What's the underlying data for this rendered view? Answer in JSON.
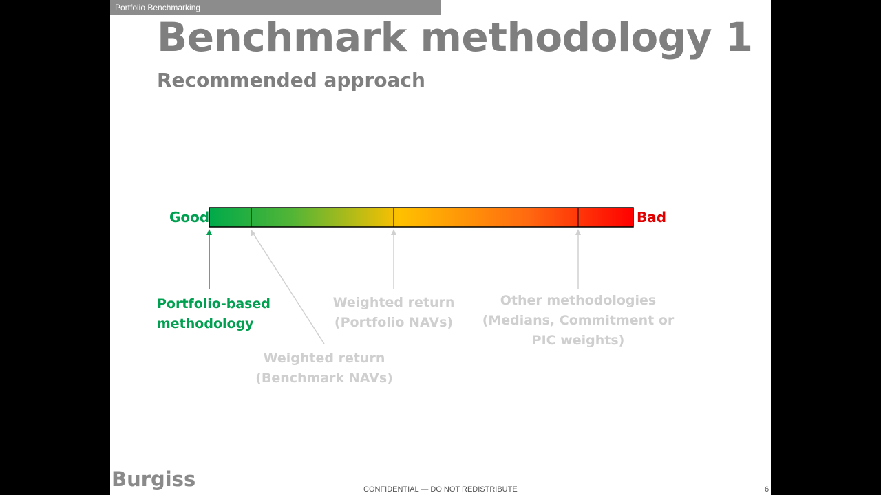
{
  "header": {
    "tab": "Portfolio Benchmarking",
    "title": "Benchmark methodology 1",
    "subtitle": "Recommended approach"
  },
  "scale": {
    "left_label": "Good",
    "right_label": "Bad"
  },
  "annotations": [
    {
      "lines": [
        "Portfolio-based",
        "methodology"
      ]
    },
    {
      "lines": [
        "Weighted return",
        "(Benchmark NAVs)"
      ]
    },
    {
      "lines": [
        "Weighted return",
        "(Portfolio NAVs)"
      ]
    },
    {
      "lines": [
        "Other methodologies",
        "(Medians, Commitment or",
        "PIC weights)"
      ]
    }
  ],
  "footer": {
    "logo": "Burgiss",
    "notice": "CONFIDENTIAL — DO NOT REDISTRIBUTE",
    "page_number": "6"
  }
}
